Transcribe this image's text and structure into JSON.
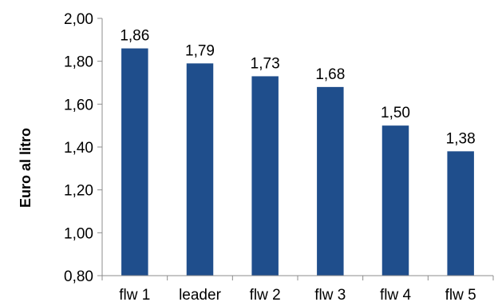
{
  "chart_data": {
    "type": "bar",
    "title": "",
    "xlabel": "",
    "ylabel": "Euro al litro",
    "categories": [
      "flw 1",
      "leader",
      "flw 2",
      "flw 3",
      "flw 4",
      "flw 5"
    ],
    "values": [
      1.86,
      1.79,
      1.73,
      1.68,
      1.5,
      1.38
    ],
    "value_labels": [
      "1,86",
      "1,79",
      "1,73",
      "1,68",
      "1,50",
      "1,38"
    ],
    "ylim": [
      0.8,
      2.0
    ],
    "yticks": [
      0.8,
      1.0,
      1.2,
      1.4,
      1.6,
      1.8,
      2.0
    ],
    "ytick_labels": [
      "0,80",
      "1,00",
      "1,20",
      "1,40",
      "1,60",
      "1,80",
      "2,00"
    ],
    "grid": false,
    "legend": "none",
    "bar_color": "#1F4E8C"
  }
}
